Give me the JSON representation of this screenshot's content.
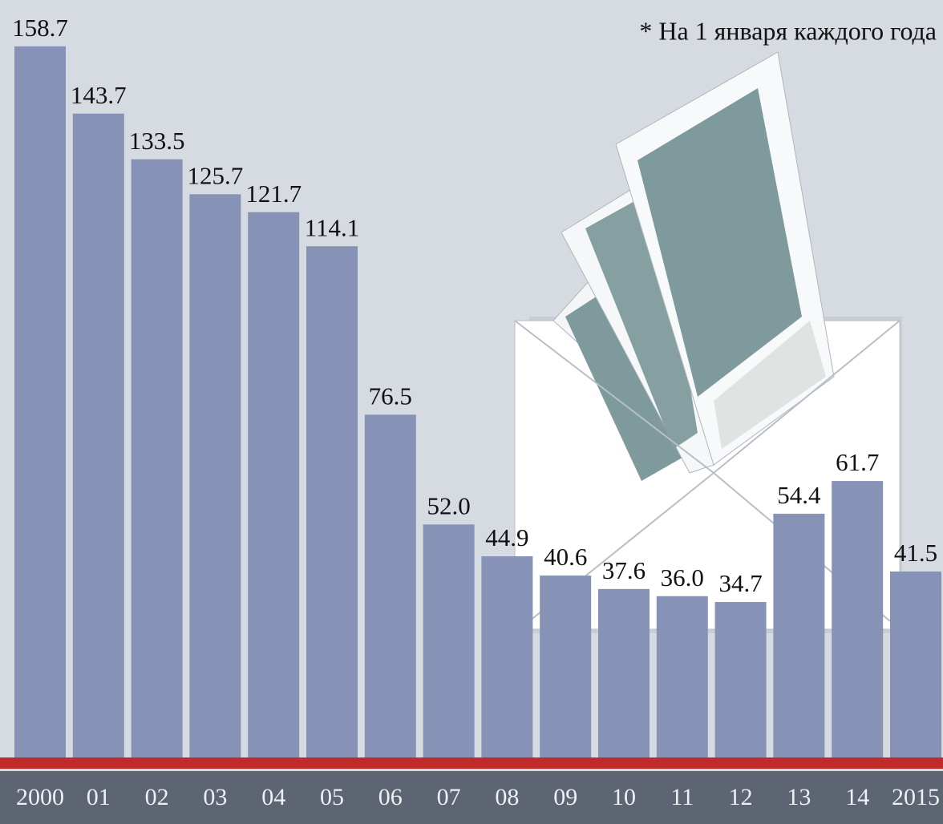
{
  "chart_data": {
    "type": "bar",
    "annotation": "* На 1 января каждого года",
    "categories": [
      "2000",
      "01",
      "02",
      "03",
      "04",
      "05",
      "06",
      "07",
      "08",
      "09",
      "10",
      "11",
      "12",
      "13",
      "14",
      "2015"
    ],
    "values": [
      158.7,
      143.7,
      133.5,
      125.7,
      121.7,
      114.1,
      76.5,
      52.0,
      44.9,
      40.6,
      37.6,
      36.0,
      34.7,
      54.4,
      61.7,
      41.5
    ],
    "value_labels": [
      "158.7",
      "143.7",
      "133.5",
      "125.7",
      "121.7",
      "114.1",
      "76.5",
      "52.0",
      "44.9",
      "40.6",
      "37.6",
      "36.0",
      "34.7",
      "54.4",
      "61.7",
      "41.5"
    ],
    "color": "#8793b6"
  }
}
